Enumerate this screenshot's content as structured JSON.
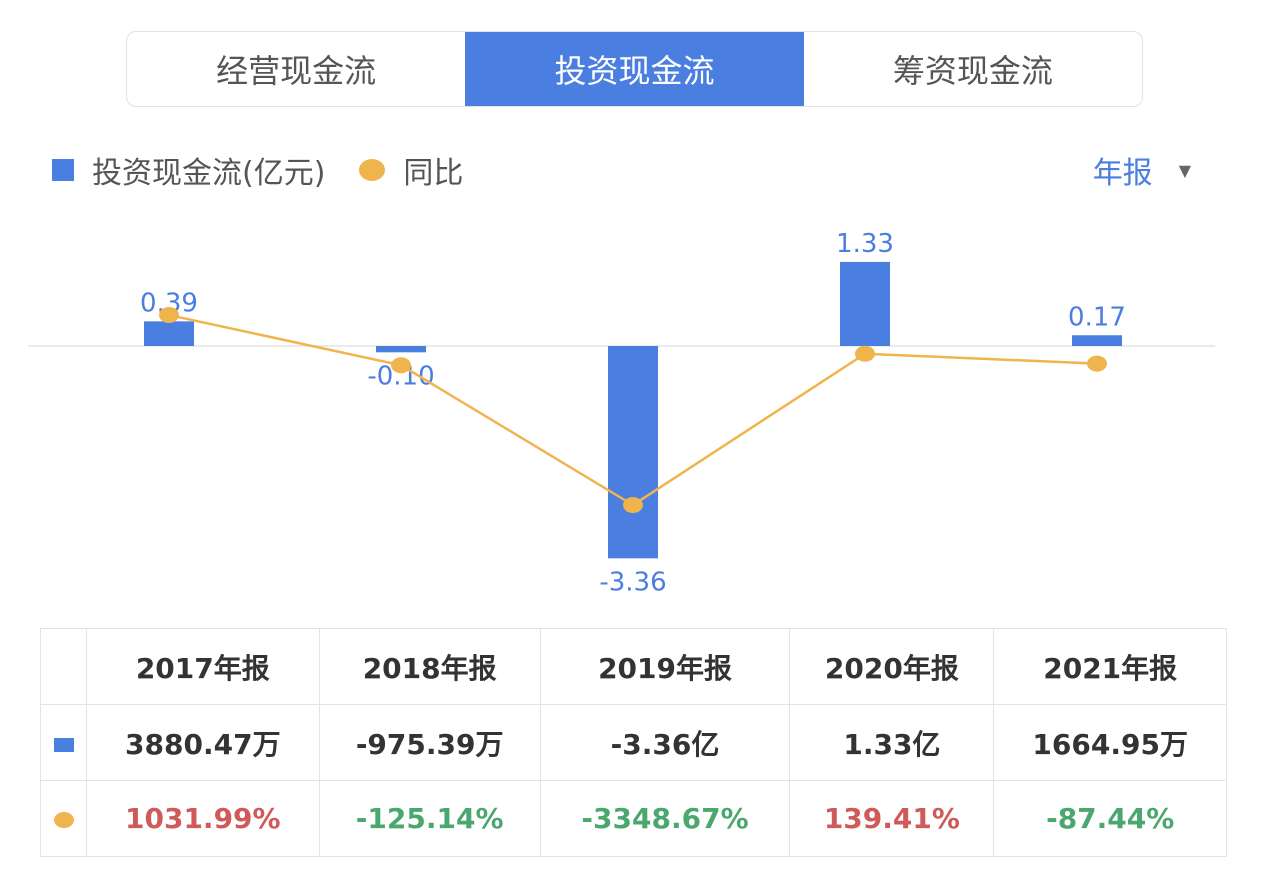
{
  "tabs": [
    "经营现金流",
    "投资现金流",
    "筹资现金流"
  ],
  "active_tab": 1,
  "legend": {
    "bar": "投资现金流(亿元)",
    "line": "同比"
  },
  "period_selector": "年报",
  "colors": {
    "bar": "#4a7ee0",
    "line": "#f0b44c",
    "positive": "#d05a5a",
    "negative": "#4aa86e"
  },
  "chart_data": {
    "type": "bar+line",
    "categories": [
      "2017年报",
      "2018年报",
      "2019年报",
      "2020年报",
      "2021年报"
    ],
    "series": [
      {
        "name": "投资现金流(亿元)",
        "type": "bar",
        "values": [
          0.39,
          -0.1,
          -3.36,
          1.33,
          0.17
        ],
        "labels": [
          "0.39",
          "-0.10",
          "-3.36",
          "1.33",
          "0.17"
        ]
      },
      {
        "name": "同比",
        "type": "line",
        "values": [
          1031.99,
          -125.14,
          -3348.67,
          139.41,
          -87.44
        ]
      }
    ]
  },
  "table": {
    "headers": [
      "2017年报",
      "2018年报",
      "2019年报",
      "2020年报",
      "2021年报"
    ],
    "amounts": [
      "3880.47万",
      "-975.39万",
      "-3.36亿",
      "1.33亿",
      "1664.95万"
    ],
    "yoy": [
      "1031.99%",
      "-125.14%",
      "-3348.67%",
      "139.41%",
      "-87.44%"
    ]
  }
}
